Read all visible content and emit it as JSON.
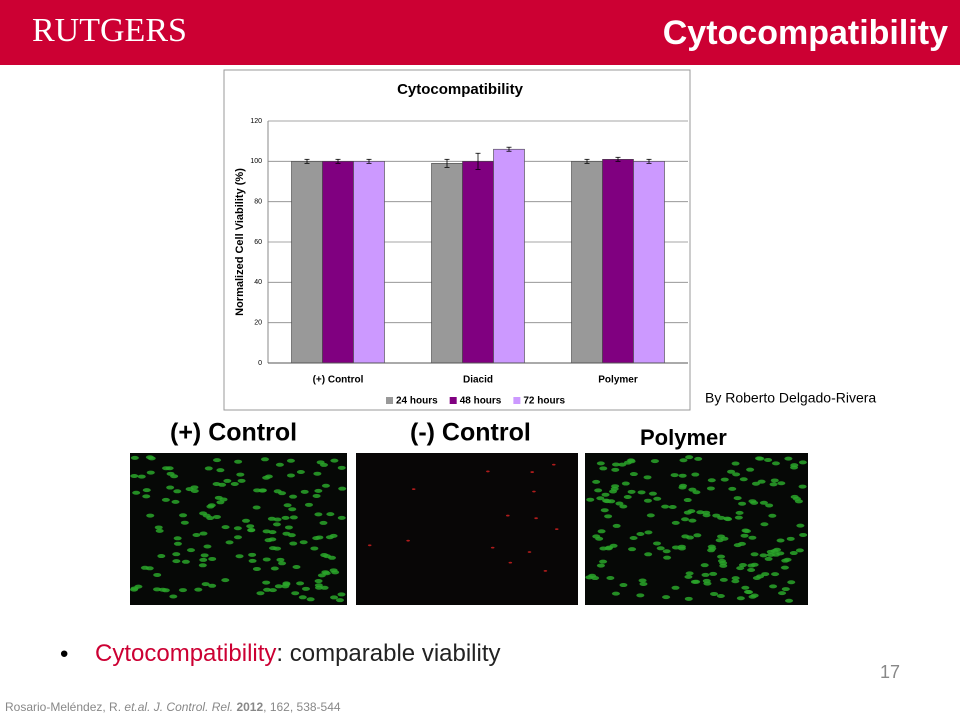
{
  "header": {
    "logo": "RUTGERS",
    "title": "Cytocompatibility"
  },
  "chart_data": {
    "type": "bar",
    "title": "Cytocompatibility",
    "y_label": "Normalized Cell Viability (%)",
    "categories": [
      "(+) Control",
      "Diacid",
      "Polymer"
    ],
    "series": [
      {
        "name": "24 hours",
        "color": "#999999",
        "values": [
          100,
          99,
          100
        ],
        "errors": [
          1,
          2,
          1
        ]
      },
      {
        "name": "48 hours",
        "color": "#800080",
        "values": [
          100,
          100,
          101
        ],
        "errors": [
          1,
          4,
          1
        ]
      },
      {
        "name": "72 hours",
        "color": "#cc99ff",
        "values": [
          100,
          106,
          100
        ],
        "errors": [
          1,
          1,
          1
        ]
      }
    ],
    "ylim": [
      0,
      120
    ],
    "yticks": [
      0,
      20,
      40,
      60,
      80,
      100,
      120
    ],
    "grid": true,
    "legend": "bottom"
  },
  "credit": "By Roberto Delgado-Rivera",
  "panels": [
    "(+) Control",
    "(-) Control",
    "Polymer"
  ],
  "bullet": {
    "highlight": "Cytocompatibility",
    "text": ": comparable viability"
  },
  "page_number": 17,
  "citation": {
    "authors": "Rosario-Meléndez, R.",
    "etal": "et.al.",
    "journal": "J. Control. Rel.",
    "year": "2012",
    "details": "162, 538-544"
  }
}
